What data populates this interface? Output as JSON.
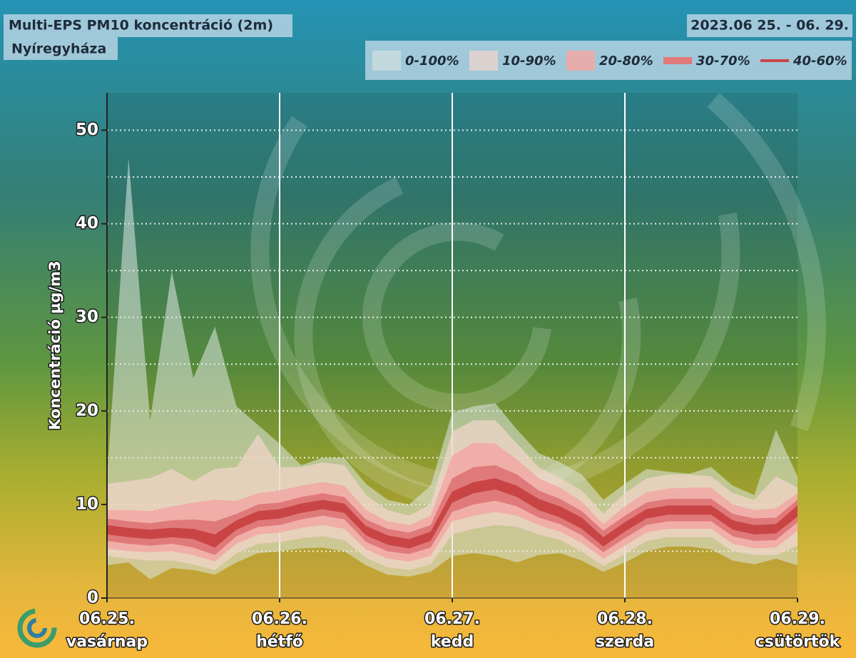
{
  "chart_data": {
    "type": "fan",
    "title": "Multi-EPS PM10 koncentráció (2m)",
    "subtitle": "Nyíregyháza",
    "date_range": "2023.06 25. - 06. 29.",
    "y_label": "Koncentráció µg/m3",
    "legend": "top-right",
    "grid": true,
    "xlim": [
      0,
      4
    ],
    "xticks": [
      {
        "value": 0,
        "label": "06.25."
      },
      {
        "value": 1,
        "label": "06.26."
      },
      {
        "value": 2,
        "label": "06.27."
      },
      {
        "value": 3,
        "label": "06.28."
      },
      {
        "value": 4,
        "label": "06.29."
      }
    ],
    "x_sublabels": [
      "vasárnap",
      "hétfő",
      "kedd",
      "szerda",
      "csütörtök"
    ],
    "ylim": [
      0,
      54
    ],
    "yticks": [
      0,
      10,
      20,
      30,
      40,
      50
    ],
    "minor_yticks": [
      5,
      15,
      25,
      35,
      45
    ],
    "x": [
      0,
      0.125,
      0.25,
      0.375,
      0.5,
      0.625,
      0.75,
      0.875,
      1,
      1.125,
      1.25,
      1.375,
      1.5,
      1.625,
      1.75,
      1.875,
      2,
      2.125,
      2.25,
      2.375,
      2.5,
      2.625,
      2.75,
      2.875,
      3,
      3.125,
      3.25,
      3.375,
      3.5,
      3.625,
      3.75,
      3.875,
      4
    ],
    "series": [
      {
        "name": "0-100%",
        "color": "rgba(222,232,228,0.55)",
        "low": [
          3.5,
          3.8,
          2.0,
          3.2,
          3.0,
          2.5,
          3.8,
          4.8,
          5.0,
          5.3,
          5.4,
          5.0,
          3.5,
          2.5,
          2.3,
          2.8,
          4.5,
          4.8,
          4.5,
          3.8,
          4.6,
          4.8,
          4.0,
          2.8,
          3.8,
          5.0,
          5.5,
          5.5,
          5.2,
          4.0,
          3.6,
          4.2,
          3.5
        ],
        "high": [
          12.8,
          47.0,
          19.0,
          35.0,
          23.5,
          29.0,
          20.5,
          18.5,
          16.5,
          14.2,
          15.0,
          15.0,
          12.2,
          10.5,
          10.0,
          12.0,
          19.8,
          20.5,
          20.8,
          18.0,
          15.5,
          14.5,
          13.2,
          10.5,
          12.2,
          13.8,
          13.5,
          13.3,
          14.0,
          12.0,
          11.0,
          18.0,
          13.0
        ]
      },
      {
        "name": "10-90%",
        "color": "rgba(244,214,204,0.7)",
        "low": [
          4.5,
          4.2,
          4.0,
          4.0,
          3.6,
          3.0,
          4.8,
          5.8,
          6.0,
          6.4,
          6.6,
          6.2,
          4.3,
          3.3,
          3.0,
          3.6,
          6.8,
          7.4,
          7.8,
          7.6,
          6.8,
          6.2,
          5.0,
          3.4,
          4.7,
          6.1,
          6.5,
          6.5,
          6.5,
          5.0,
          4.6,
          4.6,
          5.6
        ],
        "high": [
          12.2,
          12.5,
          12.8,
          13.8,
          12.5,
          13.8,
          14.0,
          17.5,
          14.0,
          14.0,
          14.5,
          14.2,
          11.0,
          9.4,
          8.8,
          10.0,
          17.8,
          19.0,
          19.0,
          16.5,
          14.0,
          12.8,
          11.5,
          9.0,
          11.2,
          12.8,
          13.2,
          13.2,
          13.0,
          11.2,
          10.5,
          13.0,
          11.8
        ]
      },
      {
        "name": "20-80%",
        "color": "rgba(242,168,165,0.85)",
        "low": [
          5.3,
          5.0,
          4.9,
          5.0,
          4.6,
          3.9,
          5.8,
          6.8,
          7.0,
          7.5,
          7.8,
          7.4,
          5.2,
          4.2,
          3.9,
          4.5,
          8.2,
          8.8,
          9.2,
          8.8,
          7.8,
          7.1,
          5.9,
          4.2,
          5.6,
          7.0,
          7.4,
          7.4,
          7.4,
          5.8,
          5.3,
          5.4,
          7.2
        ],
        "high": [
          9.4,
          9.4,
          9.3,
          9.8,
          10.2,
          10.5,
          10.4,
          11.2,
          11.5,
          12.0,
          12.4,
          12.0,
          9.4,
          8.2,
          7.8,
          8.8,
          15.2,
          16.6,
          16.5,
          14.8,
          12.8,
          11.8,
          10.3,
          7.9,
          9.8,
          11.3,
          11.7,
          11.8,
          11.8,
          10.0,
          9.4,
          9.6,
          11.2
        ]
      },
      {
        "name": "30-70%",
        "color": "#e07a7a",
        "low": [
          6.1,
          5.8,
          5.6,
          5.8,
          5.4,
          4.6,
          6.6,
          7.6,
          7.8,
          8.4,
          8.8,
          8.4,
          6.0,
          5.0,
          4.7,
          5.4,
          9.2,
          10.0,
          10.4,
          9.8,
          8.6,
          7.9,
          6.7,
          4.9,
          6.4,
          7.8,
          8.2,
          8.2,
          8.2,
          6.6,
          6.1,
          6.2,
          8.1
        ],
        "high": [
          8.5,
          8.2,
          8.0,
          8.3,
          8.4,
          8.2,
          9.0,
          10.0,
          10.2,
          10.8,
          11.2,
          10.8,
          8.4,
          7.4,
          7.0,
          7.8,
          12.8,
          14.0,
          14.2,
          13.2,
          11.5,
          10.6,
          9.3,
          7.2,
          8.8,
          10.2,
          10.6,
          10.6,
          10.6,
          9.0,
          8.5,
          8.6,
          10.5
        ]
      },
      {
        "name": "40-60%",
        "color": "#c94545",
        "low": [
          6.8,
          6.5,
          6.3,
          6.5,
          6.3,
          5.4,
          7.3,
          8.3,
          8.5,
          9.1,
          9.5,
          9.1,
          6.7,
          5.7,
          5.3,
          6.1,
          10.2,
          11.2,
          11.6,
          10.8,
          9.4,
          8.6,
          7.4,
          5.5,
          7.1,
          8.5,
          8.9,
          8.9,
          8.9,
          7.3,
          6.8,
          6.9,
          8.7
        ],
        "high": [
          7.8,
          7.5,
          7.3,
          7.5,
          7.4,
          6.8,
          8.3,
          9.3,
          9.5,
          10.1,
          10.5,
          10.1,
          7.7,
          6.7,
          6.3,
          7.1,
          11.4,
          12.4,
          12.8,
          12.0,
          10.6,
          9.8,
          8.6,
          6.5,
          8.1,
          9.5,
          9.9,
          9.9,
          9.9,
          8.3,
          7.8,
          7.9,
          9.9
        ]
      }
    ]
  }
}
